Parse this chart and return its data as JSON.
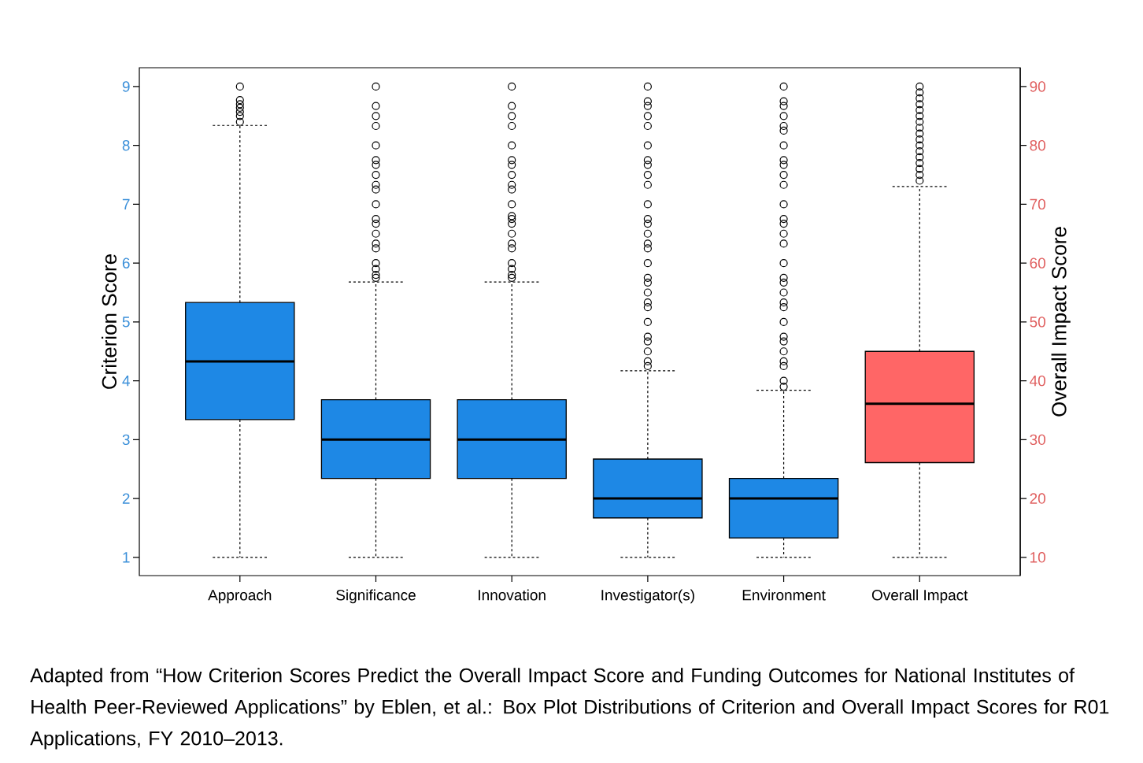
{
  "chart_data": {
    "type": "box",
    "categories": [
      "Approach",
      "Significance",
      "Innovation",
      "Investigator(s)",
      "Environment",
      "Overall Impact"
    ],
    "ylabel": "Criterion Score",
    "y2label": "Overall Impact Score",
    "ylim": [
      0.69,
      9.32
    ],
    "yticks": [
      1,
      2,
      3,
      4,
      5,
      6,
      7,
      8,
      9
    ],
    "y2lim": [
      6.9,
      93.2
    ],
    "y2ticks": [
      10,
      20,
      30,
      40,
      50,
      60,
      70,
      80,
      90
    ],
    "marker": "circle",
    "series": [
      {
        "color": "#1e88e5",
        "axis": "y",
        "boxes": [
          {
            "low": 1,
            "q1": 3.34,
            "median": 4.33,
            "q3": 5.33,
            "high": 8.34,
            "outliers": [
              9,
              8.77,
              8.7,
              8.64,
              8.57,
              8.5,
              8.4
            ]
          },
          {
            "low": 1,
            "q1": 2.34,
            "median": 3.0,
            "q3": 3.68,
            "high": 5.68,
            "outliers": [
              9,
              8.67,
              8.5,
              8.33,
              8.0,
              7.75,
              7.67,
              7.5,
              7.33,
              7.25,
              7.0,
              6.75,
              6.67,
              6.5,
              6.33,
              6.25,
              6.0,
              5.9,
              5.8,
              5.75
            ]
          },
          {
            "low": 1,
            "q1": 2.34,
            "median": 3.0,
            "q3": 3.68,
            "high": 5.68,
            "outliers": [
              9,
              8.67,
              8.5,
              8.33,
              8.0,
              7.75,
              7.67,
              7.5,
              7.33,
              7.25,
              7.0,
              6.8,
              6.75,
              6.67,
              6.5,
              6.33,
              6.25,
              6.0,
              5.9,
              5.8,
              5.75
            ]
          },
          {
            "low": 1,
            "q1": 1.67,
            "median": 2.0,
            "q3": 2.67,
            "high": 4.17,
            "outliers": [
              9,
              8.75,
              8.67,
              8.5,
              8.33,
              8.0,
              7.75,
              7.67,
              7.5,
              7.33,
              7.0,
              6.75,
              6.67,
              6.5,
              6.33,
              6.25,
              6.0,
              5.75,
              5.67,
              5.5,
              5.33,
              5.25,
              5.0,
              4.75,
              4.67,
              4.5,
              4.33,
              4.25
            ]
          },
          {
            "low": 1,
            "q1": 1.33,
            "median": 2.0,
            "q3": 2.34,
            "high": 3.84,
            "outliers": [
              9,
              8.75,
              8.67,
              8.5,
              8.33,
              8.25,
              8.0,
              7.75,
              7.67,
              7.5,
              7.33,
              7.0,
              6.75,
              6.67,
              6.5,
              6.33,
              6.0,
              5.75,
              5.67,
              5.5,
              5.33,
              5.25,
              5.0,
              4.75,
              4.67,
              4.5,
              4.33,
              4.25,
              4.0,
              3.9
            ]
          },
          null
        ]
      },
      {
        "color": "#ff6666",
        "axis": "y2",
        "boxes": [
          null,
          null,
          null,
          null,
          null,
          {
            "low": 10,
            "q1": 26.1,
            "median": 36.1,
            "q3": 45.0,
            "high": 73.0,
            "outliers": [
              74,
              75,
              76,
              77,
              78,
              79,
              80,
              81,
              82,
              83,
              84,
              85,
              86,
              87,
              88,
              89,
              90
            ]
          }
        ]
      }
    ],
    "annotations": [
      "Adapted from “How Criterion Scores Predict the Overall Impact Score and Funding Outcomes for National Institutes of Health Peer-Reviewed Applications” by Eblen, et al.: Box Plot Distributions of Criterion and Overall Impact Scores for R01 Applications, FY 2010–2013."
    ]
  }
}
